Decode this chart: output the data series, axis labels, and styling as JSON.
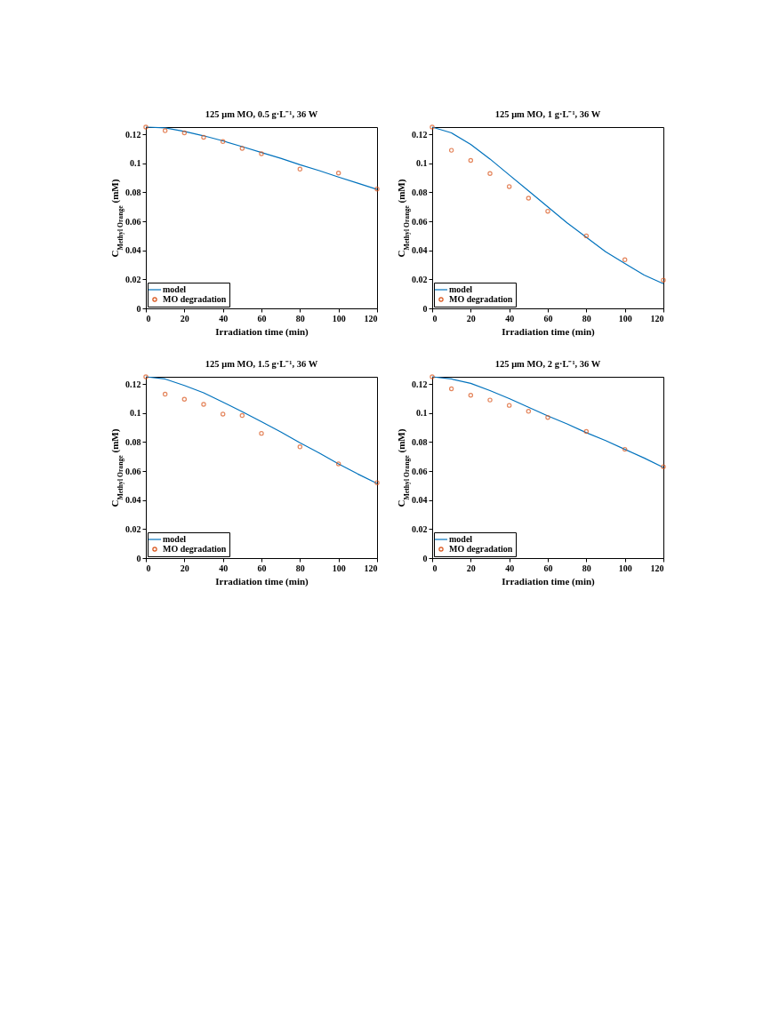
{
  "chart_data": [
    {
      "type": "scatter",
      "title": "125 μm MO, 0.5 g·L⁻¹, 36 W",
      "xlabel": "Irradiation time (min)",
      "ylabel": "C$_{Methyl Orange}$ (mM)",
      "xlim": [
        0,
        120
      ],
      "ylim": [
        0,
        0.125
      ],
      "xticks": [
        0,
        20,
        40,
        60,
        80,
        100,
        120
      ],
      "yticks": [
        0,
        0.02,
        0.04,
        0.06,
        0.08,
        0.1,
        0.12
      ],
      "legend": "bottom left",
      "series": [
        {
          "name": "model",
          "type": "line",
          "color": "#0072bd",
          "x": [
            0,
            10,
            20,
            30,
            40,
            50,
            60,
            70,
            80,
            90,
            100,
            110,
            120
          ],
          "values": [
            0.125,
            0.1245,
            0.122,
            0.119,
            0.1155,
            0.1115,
            0.1075,
            0.1035,
            0.099,
            0.095,
            0.0905,
            0.0863,
            0.082
          ]
        },
        {
          "name": "MO degradation",
          "type": "scatter",
          "marker": "circle",
          "color": "#d95319",
          "x": [
            0,
            10,
            20,
            30,
            40,
            50,
            60,
            80,
            100,
            120
          ],
          "values": [
            0.125,
            0.1225,
            0.121,
            0.118,
            0.115,
            0.1103,
            0.1066,
            0.096,
            0.0933,
            0.0823
          ]
        }
      ]
    },
    {
      "type": "scatter",
      "title": "125 μm MO, 1 g·L⁻¹, 36 W",
      "xlabel": "Irradiation time (min)",
      "ylabel": "C$_{Methyl Orange}$ (mM)",
      "xlim": [
        0,
        120
      ],
      "ylim": [
        0,
        0.125
      ],
      "xticks": [
        0,
        20,
        40,
        60,
        80,
        100,
        120
      ],
      "yticks": [
        0,
        0.02,
        0.04,
        0.06,
        0.08,
        0.1,
        0.12
      ],
      "legend": "bottom left",
      "series": [
        {
          "name": "model",
          "type": "line",
          "color": "#0072bd",
          "x": [
            0,
            10,
            20,
            30,
            40,
            50,
            60,
            70,
            80,
            90,
            100,
            110,
            120
          ],
          "values": [
            0.125,
            0.121,
            0.113,
            0.103,
            0.092,
            0.081,
            0.07,
            0.059,
            0.049,
            0.039,
            0.031,
            0.023,
            0.017
          ]
        },
        {
          "name": "MO degradation",
          "type": "scatter",
          "marker": "circle",
          "color": "#d95319",
          "x": [
            0,
            10,
            20,
            30,
            40,
            50,
            60,
            80,
            100,
            120
          ],
          "values": [
            0.125,
            0.109,
            0.102,
            0.093,
            0.084,
            0.076,
            0.067,
            0.05,
            0.0335,
            0.0195
          ]
        }
      ]
    },
    {
      "type": "scatter",
      "title": "125 μm MO, 1.5 g·L⁻¹, 36 W",
      "xlabel": "Irradiation time (min)",
      "ylabel": "C$_{Methyl Orange}$ (mM)",
      "xlim": [
        0,
        120
      ],
      "ylim": [
        0,
        0.125
      ],
      "xticks": [
        0,
        20,
        40,
        60,
        80,
        100,
        120
      ],
      "yticks": [
        0,
        0.02,
        0.04,
        0.06,
        0.08,
        0.1,
        0.12
      ],
      "legend": "bottom left",
      "series": [
        {
          "name": "model",
          "type": "line",
          "color": "#0072bd",
          "x": [
            0,
            10,
            20,
            30,
            40,
            50,
            60,
            70,
            80,
            90,
            100,
            110,
            120
          ],
          "values": [
            0.125,
            0.1235,
            0.119,
            0.114,
            0.1075,
            0.101,
            0.094,
            0.087,
            0.0795,
            0.0725,
            0.065,
            0.058,
            0.0515
          ]
        },
        {
          "name": "MO degradation",
          "type": "scatter",
          "marker": "circle",
          "color": "#d95319",
          "x": [
            0,
            10,
            20,
            30,
            40,
            50,
            60,
            80,
            100,
            120
          ],
          "values": [
            0.125,
            0.113,
            0.1095,
            0.106,
            0.0993,
            0.0983,
            0.086,
            0.0767,
            0.065,
            0.052
          ]
        }
      ]
    },
    {
      "type": "scatter",
      "title": "125 μm MO, 2 g·L⁻¹, 36 W",
      "xlabel": "Irradiation time (min)",
      "ylabel": "C$_{Methyl Orange}$ (mM)",
      "xlim": [
        0,
        120
      ],
      "ylim": [
        0,
        0.125
      ],
      "xticks": [
        0,
        20,
        40,
        60,
        80,
        100,
        120
      ],
      "yticks": [
        0,
        0.02,
        0.04,
        0.06,
        0.08,
        0.1,
        0.12
      ],
      "legend": "bottom left",
      "series": [
        {
          "name": "model",
          "type": "line",
          "color": "#0072bd",
          "x": [
            0,
            10,
            20,
            30,
            40,
            50,
            60,
            70,
            80,
            90,
            100,
            110,
            120
          ],
          "values": [
            0.125,
            0.1235,
            0.1205,
            0.1155,
            0.11,
            0.104,
            0.098,
            0.0925,
            0.0865,
            0.081,
            0.075,
            0.069,
            0.0625
          ]
        },
        {
          "name": "MO degradation",
          "type": "scatter",
          "marker": "circle",
          "color": "#d95319",
          "x": [
            0,
            10,
            20,
            30,
            40,
            50,
            60,
            80,
            100,
            120
          ],
          "values": [
            0.125,
            0.1167,
            0.1123,
            0.109,
            0.1053,
            0.1012,
            0.097,
            0.0873,
            0.075,
            0.063
          ]
        }
      ]
    }
  ]
}
